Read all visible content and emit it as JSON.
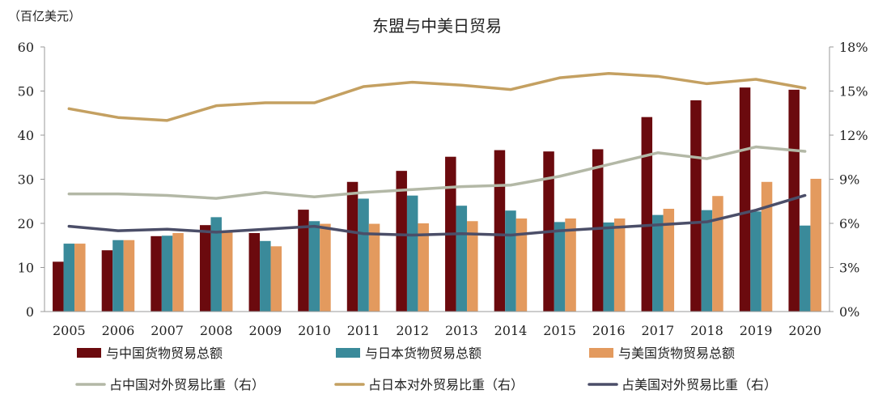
{
  "chart_data": {
    "type": "bar",
    "title": "东盟与中美日贸易",
    "ylabel_left": "（百亿美元）",
    "ylim_left": [
      0,
      60
    ],
    "yticks_left": [
      "0",
      "10",
      "20",
      "30",
      "40",
      "50",
      "60"
    ],
    "ylim_right": [
      0,
      18
    ],
    "yticks_right": [
      "0%",
      "3%",
      "6%",
      "9%",
      "12%",
      "15%",
      "18%"
    ],
    "categories": [
      "2005",
      "2006",
      "2007",
      "2008",
      "2009",
      "2010",
      "2011",
      "2012",
      "2013",
      "2014",
      "2015",
      "2016",
      "2017",
      "2018",
      "2019",
      "2020"
    ],
    "bar_series": [
      {
        "name": "与中国货物贸易总额",
        "color": "#6b0a0e",
        "values": [
          11.3,
          13.9,
          17.1,
          19.6,
          17.8,
          23.1,
          29.4,
          31.9,
          35.1,
          36.6,
          36.3,
          36.8,
          44.1,
          47.9,
          50.8,
          50.3
        ]
      },
      {
        "name": "与日本货物贸易总额",
        "color": "#3a8a9a",
        "values": [
          15.4,
          16.2,
          17.2,
          21.4,
          16.0,
          20.5,
          25.6,
          26.3,
          24.0,
          22.9,
          20.3,
          20.2,
          21.9,
          23.0,
          22.7,
          19.5
        ]
      },
      {
        "name": "与美国货物贸易总额",
        "color": "#e39a5e",
        "values": [
          15.4,
          16.2,
          17.8,
          18.2,
          14.8,
          19.9,
          19.9,
          20.0,
          20.5,
          21.1,
          21.1,
          21.1,
          23.3,
          26.2,
          29.4,
          30.1
        ]
      }
    ],
    "line_series": [
      {
        "name": "占中国对外贸易比重（右）",
        "color": "#b3b8a6",
        "values": [
          8.0,
          8.0,
          7.9,
          7.7,
          8.1,
          7.8,
          8.1,
          8.3,
          8.5,
          8.6,
          9.2,
          10.0,
          10.8,
          10.4,
          11.2,
          10.9
        ]
      },
      {
        "name": "占日本对外贸易比重（右）",
        "color": "#c4a061",
        "values": [
          13.8,
          13.2,
          13.0,
          14.0,
          14.2,
          14.2,
          15.3,
          15.6,
          15.4,
          15.1,
          15.9,
          16.2,
          16.0,
          15.5,
          15.8,
          15.2
        ]
      },
      {
        "name": "占美国对外贸易比重（右）",
        "color": "#4b4e68",
        "values": [
          5.8,
          5.5,
          5.6,
          5.4,
          5.6,
          5.8,
          5.3,
          5.2,
          5.3,
          5.2,
          5.5,
          5.7,
          5.9,
          6.1,
          6.9,
          7.9
        ]
      }
    ],
    "legend_position": "bottom",
    "grid": false
  }
}
